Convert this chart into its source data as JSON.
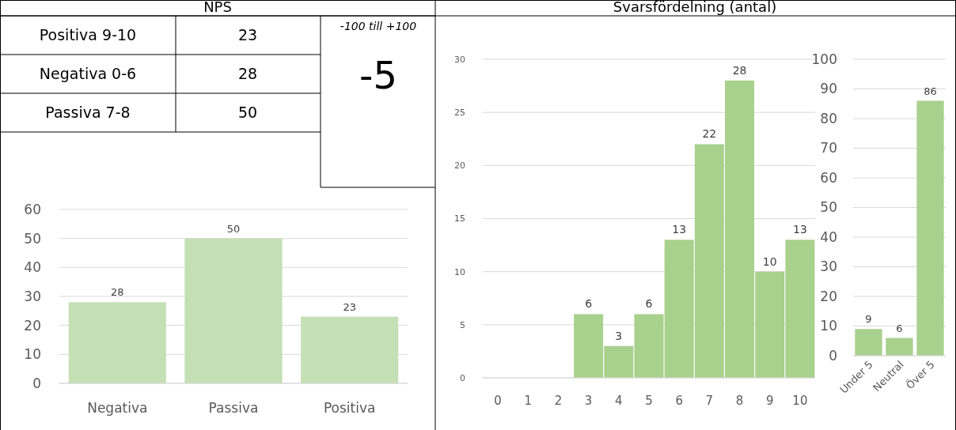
{
  "chart_data": [
    {
      "type": "other",
      "title": "NPS",
      "categories": [
        "Positiva 9-10",
        "Negativa 0-6",
        "Passiva 7-8"
      ],
      "values": [
        23,
        28,
        50
      ],
      "data_labels": true,
      "annotations": [
        "-100 till +100",
        "-5"
      ]
    },
    {
      "type": "bar",
      "categories": [
        "Negativa",
        "Passiva",
        "Positiva"
      ],
      "values": [
        28,
        50,
        23
      ],
      "color": "#c5e0b4",
      "ylim": [
        0,
        60
      ],
      "yticks": [
        0,
        10,
        20,
        30,
        40,
        50,
        60
      ],
      "grid": "y",
      "data_labels": true
    },
    {
      "type": "bar",
      "title": "Svarsfördelning (antal)",
      "categories": [
        "0",
        "1",
        "2",
        "3",
        "4",
        "5",
        "6",
        "7",
        "8",
        "9",
        "10"
      ],
      "values": [
        0,
        0,
        0,
        6,
        3,
        6,
        13,
        22,
        28,
        10,
        13
      ],
      "value_labels": [
        null,
        null,
        null,
        "6",
        "3",
        "6",
        "13",
        "22",
        "28",
        "10",
        "13"
      ],
      "color": "#a9d18e",
      "ylim": [
        0,
        30
      ],
      "yticks": [
        0,
        5,
        10,
        15,
        20,
        25,
        30
      ],
      "grid": "y"
    },
    {
      "type": "bar",
      "categories": [
        "Under 5",
        "Neutral",
        "Över 5"
      ],
      "values": [
        9,
        6,
        86
      ],
      "color": "#a9d18e",
      "ylim": [
        0,
        100
      ],
      "yticks": [
        0,
        10,
        20,
        30,
        40,
        50,
        60,
        70,
        80,
        90,
        100
      ],
      "grid": "y",
      "data_labels": true
    }
  ]
}
